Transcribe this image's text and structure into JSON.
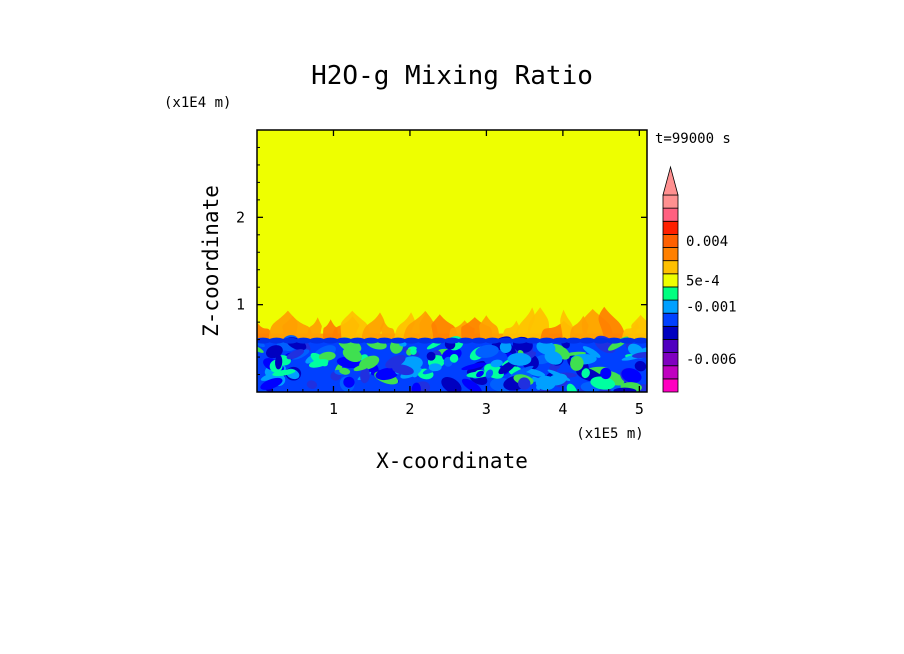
{
  "chart_data": {
    "type": "heatmap",
    "title": "H2O-g Mixing Ratio",
    "xlabel": "X-coordinate",
    "ylabel": "Z-coordinate",
    "x_scale_label": "(x1E5 m)",
    "y_scale_label": "(x1E4 m)",
    "time_label": "t=99000 s",
    "xlim": [
      0,
      5.1
    ],
    "ylim": [
      0,
      3
    ],
    "x_ticks": [
      1,
      2,
      3,
      4,
      5
    ],
    "y_ticks": [
      1,
      2
    ],
    "x_tick_labels": [
      "1",
      "2",
      "3",
      "4",
      "5"
    ],
    "y_tick_labels": [
      "1",
      "2"
    ],
    "background_level_color": "#eeff00",
    "field_summary": {
      "background_value": "≈0 (yellow band, z above ~1)",
      "plume_layer_z_range": [
        0.6,
        1.0
      ],
      "plume_layer_colors": [
        "#ffc000",
        "#ffa000",
        "#ff7f00"
      ],
      "negative_layer_z_range": [
        0,
        0.6
      ],
      "negative_layer_colors": [
        "#00a0ff",
        "#0060ff",
        "#0000ff",
        "#00ffa0",
        "#3fe050"
      ]
    },
    "colorbar": {
      "levels": [
        {
          "color": "#ff00c0",
          "label": ""
        },
        {
          "color": "#c000c0",
          "label": ""
        },
        {
          "color": "#8000c0",
          "label": "-0.006"
        },
        {
          "color": "#5000c0",
          "label": ""
        },
        {
          "color": "#0000c0",
          "label": ""
        },
        {
          "color": "#0040ff",
          "label": ""
        },
        {
          "color": "#00a0ff",
          "label": "-0.001"
        },
        {
          "color": "#00ff80",
          "label": ""
        },
        {
          "color": "#eeff00",
          "label": "5e-4"
        },
        {
          "color": "#ffc000",
          "label": ""
        },
        {
          "color": "#ff8000",
          "label": ""
        },
        {
          "color": "#ff6000",
          "label": "0.004"
        },
        {
          "color": "#ff2000",
          "label": ""
        },
        {
          "color": "#ff6080",
          "label": ""
        },
        {
          "color": "#ff9090",
          "label": ""
        }
      ],
      "tick_labels": [
        "0.004",
        "5e-4",
        "-0.001",
        "-0.006"
      ]
    }
  }
}
